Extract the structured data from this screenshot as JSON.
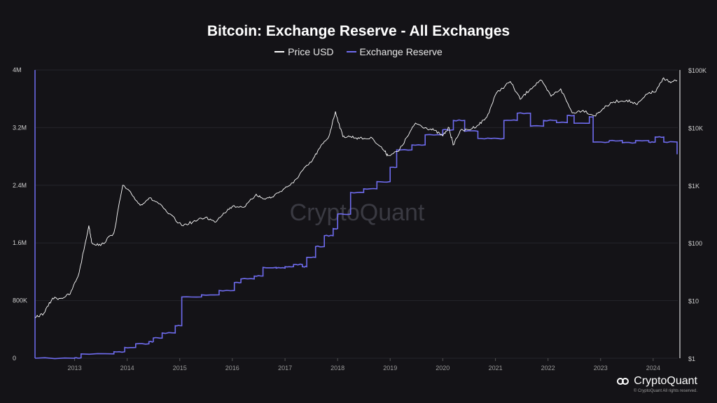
{
  "chart_data": {
    "type": "line",
    "title": "Bitcoin: Exchange Reserve - All Exchanges",
    "legend": [
      "Price USD",
      "Exchange Reserve"
    ],
    "legend_position": "top-center",
    "colors": {
      "price": "#ffffff",
      "reserve": "#6f6cf0"
    },
    "x_ticks": [
      "2013",
      "2014",
      "2015",
      "2016",
      "2017",
      "2018",
      "2019",
      "2020",
      "2021",
      "2022",
      "2023",
      "2024"
    ],
    "y_left_ticks": [
      "0",
      "800K",
      "1.6M",
      "2.4M",
      "3.2M",
      "4M"
    ],
    "y_left_range": [
      0,
      4000000
    ],
    "y_right_ticks": [
      "$1",
      "$10",
      "$100",
      "$1K",
      "$10K",
      "$100K"
    ],
    "y_right_scale": "log",
    "y_right_range": [
      1,
      100000
    ],
    "series": [
      {
        "name": "Price USD",
        "axis": "right",
        "points": [
          [
            "2012-04-01",
            5
          ],
          [
            "2012-06-01",
            6
          ],
          [
            "2012-08-01",
            11
          ],
          [
            "2012-10-01",
            11
          ],
          [
            "2012-12-01",
            13
          ],
          [
            "2013-02-01",
            30
          ],
          [
            "2013-04-10",
            200
          ],
          [
            "2013-05-01",
            100
          ],
          [
            "2013-07-01",
            90
          ],
          [
            "2013-10-01",
            150
          ],
          [
            "2013-12-01",
            1000
          ],
          [
            "2014-02-01",
            700
          ],
          [
            "2014-04-01",
            450
          ],
          [
            "2014-06-01",
            600
          ],
          [
            "2014-08-01",
            500
          ],
          [
            "2014-10-01",
            350
          ],
          [
            "2015-01-15",
            200
          ],
          [
            "2015-04-01",
            230
          ],
          [
            "2015-07-01",
            280
          ],
          [
            "2015-09-01",
            230
          ],
          [
            "2015-11-01",
            330
          ],
          [
            "2016-01-01",
            430
          ],
          [
            "2016-04-01",
            430
          ],
          [
            "2016-06-15",
            700
          ],
          [
            "2016-08-01",
            580
          ],
          [
            "2016-10-01",
            620
          ],
          [
            "2017-01-01",
            900
          ],
          [
            "2017-03-01",
            1100
          ],
          [
            "2017-05-01",
            1800
          ],
          [
            "2017-07-01",
            2500
          ],
          [
            "2017-09-01",
            4500
          ],
          [
            "2017-11-01",
            7000
          ],
          [
            "2017-12-17",
            19000
          ],
          [
            "2018-02-06",
            7000
          ],
          [
            "2018-04-01",
            7000
          ],
          [
            "2018-06-01",
            6500
          ],
          [
            "2018-09-01",
            6500
          ],
          [
            "2018-11-20",
            4000
          ],
          [
            "2018-12-15",
            3300
          ],
          [
            "2019-03-01",
            3900
          ],
          [
            "2019-05-01",
            7000
          ],
          [
            "2019-06-26",
            12000
          ],
          [
            "2019-09-01",
            10000
          ],
          [
            "2019-11-01",
            9000
          ],
          [
            "2020-01-01",
            7200
          ],
          [
            "2020-02-14",
            10000
          ],
          [
            "2020-03-13",
            5000
          ],
          [
            "2020-05-01",
            8800
          ],
          [
            "2020-07-01",
            9200
          ],
          [
            "2020-09-01",
            11000
          ],
          [
            "2020-11-01",
            15000
          ],
          [
            "2021-01-08",
            40000
          ],
          [
            "2021-04-14",
            63000
          ],
          [
            "2021-06-22",
            31000
          ],
          [
            "2021-09-01",
            47000
          ],
          [
            "2021-11-10",
            67000
          ],
          [
            "2022-01-22",
            35000
          ],
          [
            "2022-03-30",
            47000
          ],
          [
            "2022-06-18",
            18000
          ],
          [
            "2022-09-01",
            20000
          ],
          [
            "2022-11-21",
            16000
          ],
          [
            "2023-01-15",
            21000
          ],
          [
            "2023-04-01",
            28000
          ],
          [
            "2023-07-01",
            30000
          ],
          [
            "2023-09-11",
            25000
          ],
          [
            "2023-12-01",
            40000
          ],
          [
            "2024-01-20",
            42000
          ],
          [
            "2024-03-14",
            73000
          ],
          [
            "2024-05-01",
            60000
          ],
          [
            "2024-06-15",
            66000
          ]
        ]
      },
      {
        "name": "Exchange Reserve",
        "axis": "left",
        "points": [
          [
            "2012-04-01",
            0
          ],
          [
            "2013-01-01",
            5000
          ],
          [
            "2013-02-15",
            60000
          ],
          [
            "2013-10-01",
            90000
          ],
          [
            "2013-12-15",
            150000
          ],
          [
            "2014-03-01",
            200000
          ],
          [
            "2014-06-01",
            230000
          ],
          [
            "2014-07-01",
            280000
          ],
          [
            "2014-09-01",
            350000
          ],
          [
            "2014-12-01",
            450000
          ],
          [
            "2015-01-15",
            850000
          ],
          [
            "2015-06-01",
            880000
          ],
          [
            "2015-10-01",
            940000
          ],
          [
            "2016-01-15",
            1050000
          ],
          [
            "2016-03-01",
            1100000
          ],
          [
            "2016-06-01",
            1140000
          ],
          [
            "2016-08-01",
            1260000
          ],
          [
            "2016-11-01",
            1250000
          ],
          [
            "2017-01-01",
            1270000
          ],
          [
            "2017-03-01",
            1300000
          ],
          [
            "2017-05-01",
            1270000
          ],
          [
            "2017-06-01",
            1400000
          ],
          [
            "2017-08-01",
            1550000
          ],
          [
            "2017-10-01",
            1700000
          ],
          [
            "2017-12-01",
            1800000
          ],
          [
            "2018-01-01",
            2000000
          ],
          [
            "2018-04-01",
            2300000
          ],
          [
            "2018-07-01",
            2350000
          ],
          [
            "2018-10-01",
            2450000
          ],
          [
            "2019-01-01",
            2650000
          ],
          [
            "2019-02-15",
            2890000
          ],
          [
            "2019-06-01",
            2960000
          ],
          [
            "2019-09-01",
            3100000
          ],
          [
            "2020-01-01",
            3170000
          ],
          [
            "2020-03-15",
            3300000
          ],
          [
            "2020-06-01",
            3150000
          ],
          [
            "2020-09-01",
            3050000
          ],
          [
            "2020-12-01",
            3050000
          ],
          [
            "2021-03-01",
            3300000
          ],
          [
            "2021-06-01",
            3400000
          ],
          [
            "2021-09-01",
            3220000
          ],
          [
            "2021-12-01",
            3300000
          ],
          [
            "2022-03-01",
            3270000
          ],
          [
            "2022-05-15",
            3370000
          ],
          [
            "2022-07-01",
            3260000
          ],
          [
            "2022-10-15",
            3350000
          ],
          [
            "2022-11-10",
            3000000
          ],
          [
            "2023-03-01",
            3020000
          ],
          [
            "2023-06-01",
            2990000
          ],
          [
            "2023-09-01",
            3020000
          ],
          [
            "2023-12-01",
            3000000
          ],
          [
            "2024-01-15",
            3070000
          ],
          [
            "2024-03-15",
            3000000
          ],
          [
            "2024-06-15",
            2830000
          ]
        ]
      }
    ]
  },
  "watermark": "CryptoQuant",
  "brand": {
    "name": "CryptoQuant",
    "copyright": "© CryptoQuant All rights reserved."
  }
}
